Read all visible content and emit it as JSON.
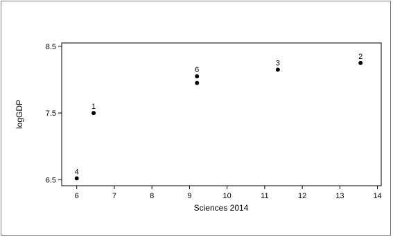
{
  "chart_data": {
    "type": "scatter",
    "title": "",
    "xlabel": "Sciences 2014",
    "ylabel": "logGDP",
    "xlim": [
      5.6,
      14.1
    ],
    "ylim": [
      6.41,
      8.55
    ],
    "x_ticks": [
      6,
      7,
      8,
      9,
      10,
      11,
      12,
      13,
      14
    ],
    "y_ticks": [
      6.5,
      7.5,
      8.5
    ],
    "x_tick_labels": [
      "6",
      "7",
      "8",
      "9",
      "10",
      "11",
      "12",
      "13",
      "14"
    ],
    "y_tick_labels": [
      "6.5",
      "7.5",
      "8.5"
    ],
    "grid": false,
    "marker_color": "#000000",
    "points": [
      {
        "x": 6.0,
        "y": 6.52,
        "label": "4"
      },
      {
        "x": 6.45,
        "y": 7.5,
        "label": "1"
      },
      {
        "x": 9.2,
        "y": 7.95,
        "label": ""
      },
      {
        "x": 9.2,
        "y": 8.05,
        "label": "6"
      },
      {
        "x": 11.35,
        "y": 8.15,
        "label": "3"
      },
      {
        "x": 13.55,
        "y": 8.25,
        "label": "2"
      }
    ]
  }
}
